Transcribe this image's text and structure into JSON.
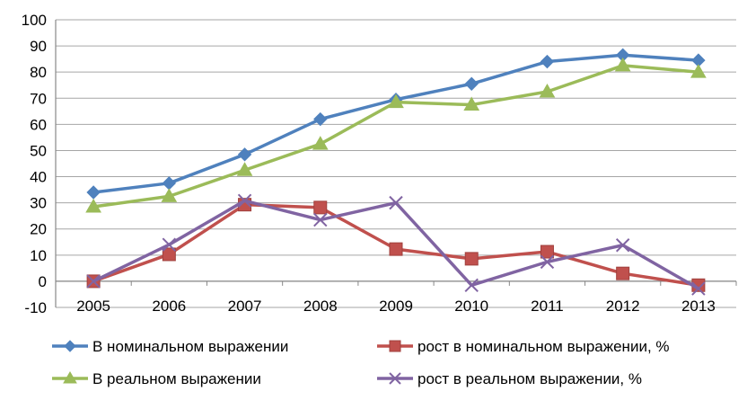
{
  "chart_data": {
    "type": "line",
    "title": "",
    "xlabel": "",
    "ylabel": "",
    "categories": [
      "2005",
      "2006",
      "2007",
      "2008",
      "2009",
      "2010",
      "2011",
      "2012",
      "2013"
    ],
    "ylim": [
      -10,
      100
    ],
    "yticks": [
      "-10",
      "0",
      "10",
      "20",
      "30",
      "40",
      "50",
      "60",
      "70",
      "80",
      "90",
      "100"
    ],
    "grid": "horizontal",
    "legend_position": "bottom",
    "series": [
      {
        "name": "В номинальном выражении",
        "marker": "diamond",
        "color": "#4F81BD",
        "values": [
          34,
          37.5,
          48.5,
          62,
          69.5,
          75.5,
          84,
          86.5,
          84.5
        ]
      },
      {
        "name": "рост в номинальном выражении, %",
        "marker": "square",
        "color": "#C0504D",
        "values": [
          0,
          10.3,
          29.3,
          28.2,
          12.3,
          8.6,
          11.3,
          3,
          -1.5
        ]
      },
      {
        "name": "В реальном выражении",
        "marker": "triangle",
        "color": "#9BBB59",
        "values": [
          28.5,
          32.5,
          42.5,
          52.5,
          68.5,
          67.5,
          72.5,
          82.5,
          80
        ]
      },
      {
        "name": "рост в реальном выражении, %",
        "marker": "x",
        "color": "#8064A2",
        "values": [
          0,
          14,
          30.8,
          23.5,
          30,
          -1.5,
          7.4,
          13.8,
          -2.8
        ]
      }
    ]
  }
}
